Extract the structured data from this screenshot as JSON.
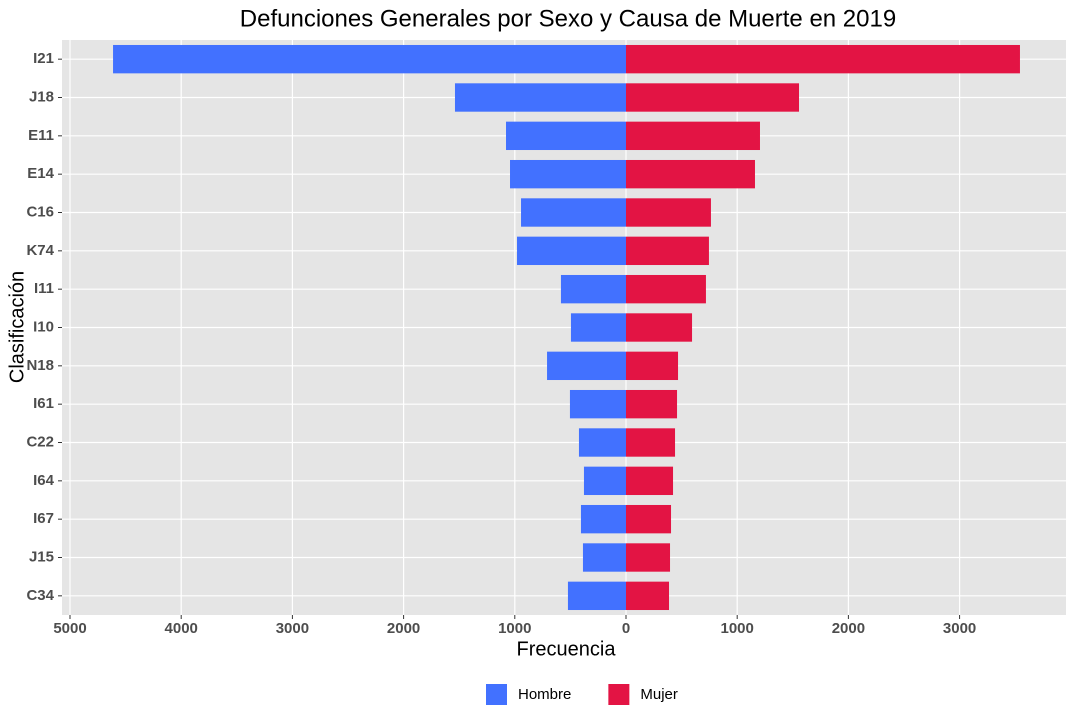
{
  "chart_data": {
    "type": "bar",
    "orientation": "horizontal",
    "stacked": "diverging",
    "title": "Defunciones Generales por Sexo y Causa de Muerte en 2019",
    "x_label": "Frecuencia",
    "y_label": "Clasificación",
    "categories": [
      "I21",
      "J18",
      "E11",
      "E14",
      "C16",
      "K74",
      "I11",
      "I10",
      "N18",
      "I61",
      "C22",
      "I64",
      "I67",
      "J15",
      "C34"
    ],
    "series": [
      {
        "name": "Hombre",
        "color": "#4271ff",
        "values": [
          -4613,
          -1538,
          -1079,
          -1043,
          -944,
          -980,
          -585,
          -495,
          -710,
          -504,
          -423,
          -378,
          -405,
          -387,
          -522
        ]
      },
      {
        "name": "Mujer",
        "color": "#e31444",
        "values": [
          3543,
          1556,
          1205,
          1160,
          764,
          746,
          719,
          594,
          468,
          459,
          441,
          423,
          405,
          396,
          387
        ]
      }
    ],
    "xlim": [
      -5072,
      3957
    ],
    "xticks": [
      {
        "value": -5000,
        "label": "5000"
      },
      {
        "value": -4000,
        "label": "4000"
      },
      {
        "value": -3000,
        "label": "3000"
      },
      {
        "value": -2000,
        "label": "2000"
      },
      {
        "value": -1000,
        "label": "1000"
      },
      0,
      1000,
      2000,
      3000
    ],
    "grid": true,
    "legend_position": "bottom"
  }
}
